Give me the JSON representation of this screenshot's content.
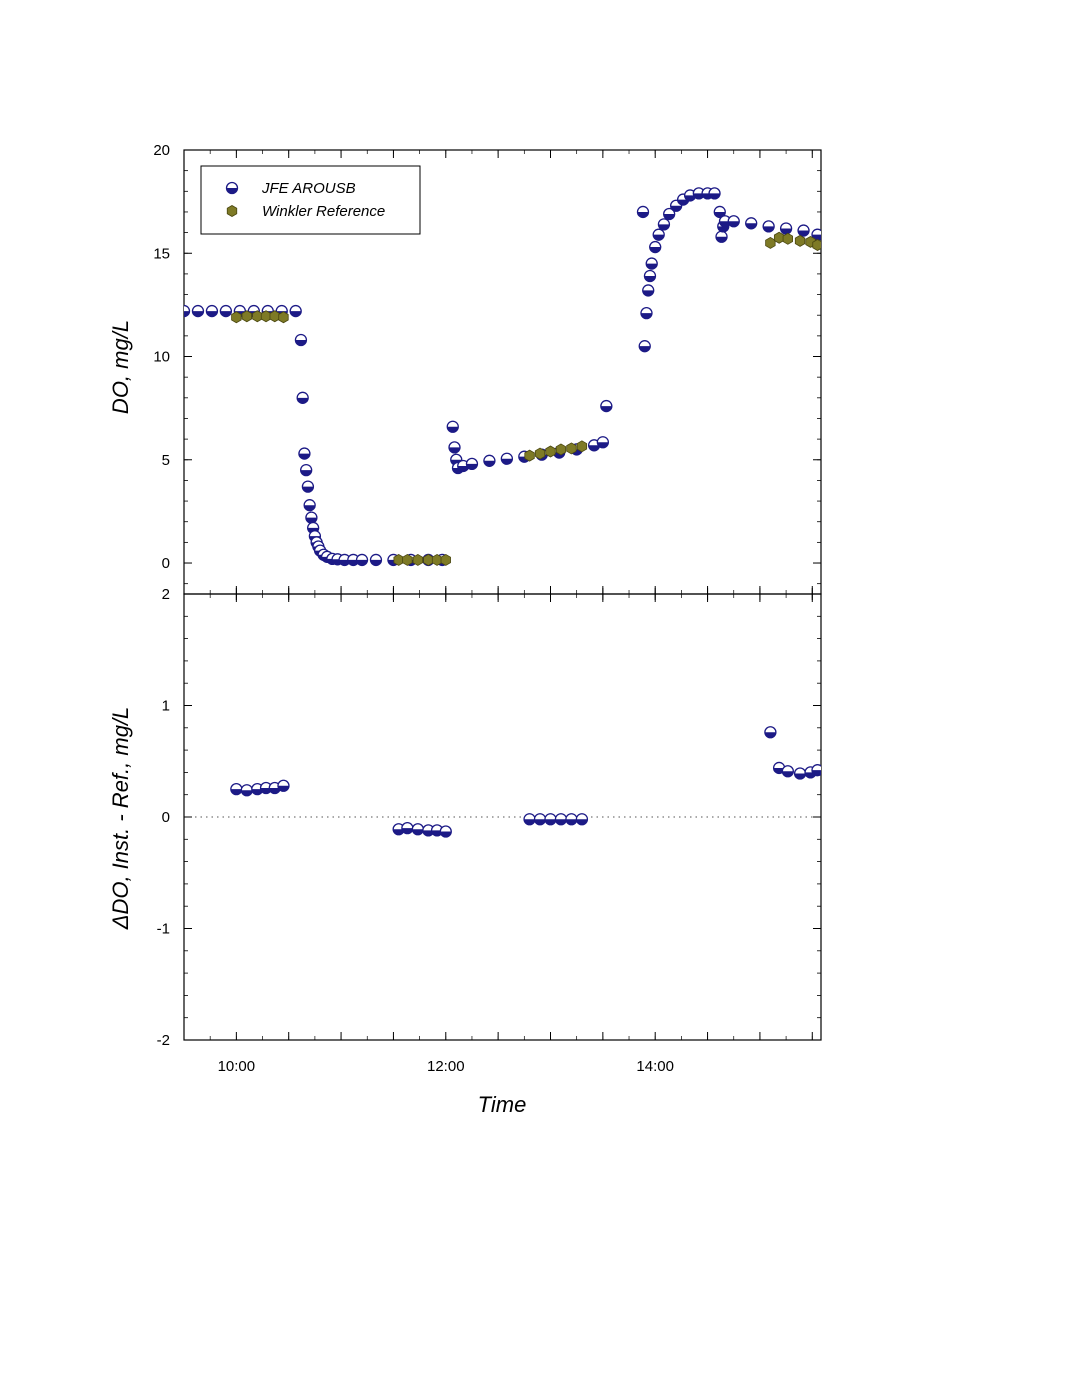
{
  "chart_data": [
    {
      "type": "scatter",
      "title": "",
      "xlabel": "Time",
      "ylabel": "DO, mg/L",
      "xlim": [
        "09:30",
        "15:35"
      ],
      "ylim": [
        -1.5,
        20
      ],
      "yticks": [
        0,
        5,
        10,
        15,
        20
      ],
      "xticks": [
        "10:00",
        "12:00",
        "14:00"
      ],
      "grid": false,
      "legend_position": "top-left",
      "series": [
        {
          "name": "JFE AROUSB",
          "color": "#1c1a86",
          "marker": "half-filled circle",
          "x": [
            "09:30",
            "09:38",
            "09:46",
            "09:54",
            "10:02",
            "10:10",
            "10:18",
            "10:26",
            "10:34",
            "10:37",
            "10:38",
            "10:39",
            "10:40",
            "10:41",
            "10:42",
            "10:43",
            "10:44",
            "10:45",
            "10:46",
            "10:47",
            "10:48",
            "10:50",
            "10:52",
            "10:55",
            "10:58",
            "11:02",
            "11:07",
            "11:12",
            "11:20",
            "11:30",
            "11:40",
            "11:50",
            "11:58",
            "12:04",
            "12:05",
            "12:06",
            "12:07",
            "12:10",
            "12:15",
            "12:25",
            "12:35",
            "12:45",
            "12:55",
            "13:05",
            "13:15",
            "13:25",
            "13:30",
            "13:32",
            "13:53",
            "13:54",
            "13:55",
            "13:56",
            "13:57",
            "13:58",
            "14:00",
            "14:02",
            "14:05",
            "14:08",
            "14:12",
            "14:16",
            "14:20",
            "14:25",
            "14:30",
            "14:34",
            "14:37",
            "14:38",
            "14:39",
            "14:40",
            "14:45",
            "14:55",
            "15:05",
            "15:15",
            "15:25",
            "15:33"
          ],
          "y": [
            12.2,
            12.2,
            12.2,
            12.2,
            12.2,
            12.2,
            12.2,
            12.2,
            12.2,
            10.8,
            8.0,
            5.3,
            4.5,
            3.7,
            2.8,
            2.2,
            1.7,
            1.3,
            1.0,
            0.8,
            0.6,
            0.4,
            0.3,
            0.2,
            0.18,
            0.15,
            0.15,
            0.15,
            0.15,
            0.15,
            0.15,
            0.15,
            0.15,
            6.6,
            5.6,
            5.0,
            4.6,
            4.7,
            4.8,
            4.95,
            5.05,
            5.15,
            5.25,
            5.35,
            5.5,
            5.7,
            5.85,
            7.6,
            17.0,
            10.5,
            12.1,
            13.2,
            13.9,
            14.5,
            15.3,
            15.9,
            16.4,
            16.9,
            17.3,
            17.6,
            17.8,
            17.9,
            17.9,
            17.9,
            17.0,
            15.8,
            16.3,
            16.55,
            16.55,
            16.45,
            16.3,
            16.2,
            16.1,
            15.9
          ]
        },
        {
          "name": "Winkler Reference",
          "color": "#7e7a26",
          "marker": "filled hexagon",
          "x": [
            "10:00",
            "10:06",
            "10:12",
            "10:17",
            "10:22",
            "10:27",
            "11:33",
            "11:38",
            "11:44",
            "11:50",
            "11:55",
            "12:00",
            "12:48",
            "12:54",
            "13:00",
            "13:06",
            "13:12",
            "13:18",
            "15:06",
            "15:11",
            "15:16",
            "15:23",
            "15:29",
            "15:33"
          ],
          "y": [
            11.9,
            11.95,
            11.95,
            11.95,
            11.95,
            11.9,
            0.15,
            0.15,
            0.15,
            0.15,
            0.15,
            0.15,
            5.2,
            5.3,
            5.4,
            5.5,
            5.55,
            5.65,
            15.5,
            15.75,
            15.7,
            15.6,
            15.55,
            15.4
          ]
        }
      ]
    },
    {
      "type": "scatter",
      "title": "",
      "xlabel": "Time",
      "ylabel": "ΔDO, Inst. - Ref., mg/L",
      "xlim": [
        "09:30",
        "15:35"
      ],
      "ylim": [
        -2,
        2
      ],
      "yticks": [
        -2,
        -1,
        0,
        1,
        2
      ],
      "xticks": [
        "10:00",
        "12:00",
        "14:00"
      ],
      "grid": false,
      "reference_line": {
        "y": 0,
        "style": "dotted"
      },
      "series": [
        {
          "name": "JFE AROUSB",
          "color": "#1c1a86",
          "marker": "half-filled circle",
          "x": [
            "10:00",
            "10:06",
            "10:12",
            "10:17",
            "10:22",
            "10:27",
            "11:33",
            "11:38",
            "11:44",
            "11:50",
            "11:55",
            "12:00",
            "12:48",
            "12:54",
            "13:00",
            "13:06",
            "13:12",
            "13:18",
            "15:06",
            "15:11",
            "15:16",
            "15:23",
            "15:29",
            "15:33"
          ],
          "y": [
            0.25,
            0.24,
            0.25,
            0.26,
            0.26,
            0.28,
            -0.11,
            -0.1,
            -0.11,
            -0.12,
            -0.12,
            -0.13,
            -0.02,
            -0.02,
            -0.02,
            -0.02,
            -0.02,
            -0.02,
            0.76,
            0.44,
            0.41,
            0.39,
            0.4,
            0.42
          ]
        }
      ]
    }
  ]
}
